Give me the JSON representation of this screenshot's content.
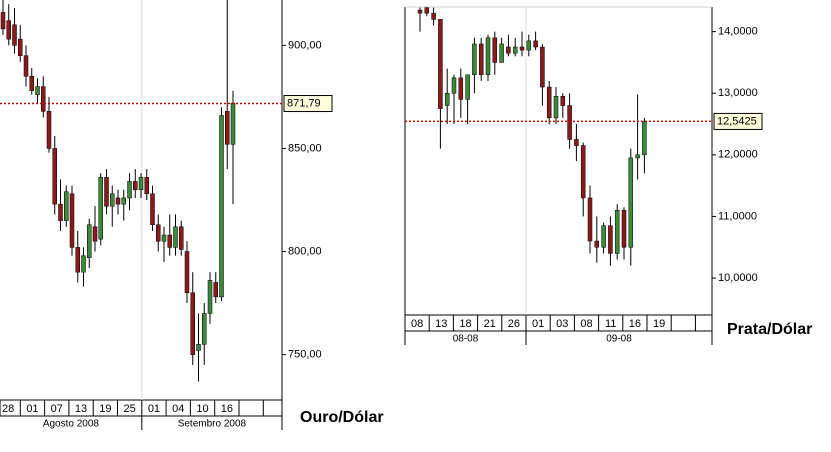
{
  "chart_data": [
    {
      "type": "candlestick",
      "title": "Ouro/Dólar",
      "ylim": [
        728,
        922
      ],
      "yticks": [
        {
          "value": 750,
          "label": "750,00"
        },
        {
          "value": 800,
          "label": "800,00"
        },
        {
          "value": 850,
          "label": "850,00"
        },
        {
          "value": 900,
          "label": "900,00"
        }
      ],
      "last": {
        "value": 871.79,
        "label": "871,79"
      },
      "date_labels": [
        "28",
        "01",
        "07",
        "13",
        "19",
        "25",
        "01",
        "04",
        "10",
        "16"
      ],
      "months": [
        "Agosto 2008",
        "Setembro 2008"
      ],
      "up_color": "#3a8a3a",
      "down_color": "#8b1a1a",
      "open": [
        916,
        912,
        910,
        903,
        895,
        885,
        876,
        880,
        868,
        850,
        823,
        815,
        828,
        802,
        790,
        797,
        812,
        806,
        836,
        822,
        826,
        823,
        826,
        834,
        830,
        836,
        828,
        813,
        805,
        808,
        802,
        812,
        800,
        780,
        752,
        755,
        770,
        785,
        778,
        868,
        852
      ],
      "high": [
        922,
        920,
        918,
        910,
        900,
        889,
        884,
        885,
        875,
        856,
        835,
        832,
        832,
        810,
        802,
        816,
        822,
        838,
        840,
        832,
        830,
        830,
        838,
        840,
        838,
        840,
        832,
        818,
        812,
        818,
        818,
        815,
        805,
        790,
        770,
        775,
        790,
        790,
        870,
        922,
        878
      ],
      "low": [
        905,
        900,
        896,
        892,
        880,
        876,
        872,
        865,
        848,
        818,
        810,
        812,
        798,
        785,
        783,
        792,
        800,
        803,
        818,
        812,
        818,
        815,
        820,
        826,
        826,
        825,
        810,
        800,
        795,
        798,
        798,
        798,
        775,
        745,
        737,
        745,
        765,
        775,
        776,
        840,
        823
      ],
      "close": [
        908,
        903,
        900,
        895,
        885,
        878,
        880,
        868,
        850,
        823,
        815,
        829,
        802,
        790,
        798,
        813,
        805,
        836,
        822,
        828,
        823,
        826,
        834,
        830,
        836,
        828,
        813,
        805,
        808,
        802,
        812,
        801,
        780,
        750,
        755,
        770,
        786,
        778,
        866,
        852,
        872
      ]
    },
    {
      "type": "candlestick",
      "title": "Prata/Dólar",
      "ylim": [
        9.4,
        14.4
      ],
      "yticks": [
        {
          "value": 10,
          "label": "10,0000"
        },
        {
          "value": 11,
          "label": "11,0000"
        },
        {
          "value": 12,
          "label": "12,0000"
        },
        {
          "value": 13,
          "label": "13,0000"
        },
        {
          "value": 14,
          "label": "14,0000"
        }
      ],
      "last": {
        "value": 12.5425,
        "label": "12,5425"
      },
      "date_labels": [
        "08",
        "13",
        "18",
        "21",
        "26",
        "01",
        "03",
        "08",
        "11",
        "16",
        "19"
      ],
      "months": [
        "08-08",
        "09-08"
      ],
      "up_color": "#3a8a3a",
      "down_color": "#8b1a1a",
      "open": [
        14.35,
        14.39,
        14.3,
        14.2,
        12.8,
        13.0,
        13.25,
        12.9,
        13.3,
        13.8,
        13.3,
        13.9,
        13.5,
        13.75,
        13.65,
        13.75,
        13.7,
        13.85,
        13.75,
        13.1,
        12.6,
        12.95,
        12.8,
        12.25,
        12.15,
        11.3,
        10.6,
        10.5,
        10.85,
        10.4,
        11.1,
        10.5,
        11.95,
        12.0
      ],
      "high": [
        14.39,
        14.39,
        14.39,
        14.2,
        13.4,
        13.3,
        13.4,
        13.3,
        13.9,
        13.9,
        13.95,
        14.0,
        13.9,
        13.95,
        13.9,
        14.0,
        13.95,
        14.0,
        13.8,
        13.2,
        13.1,
        13.0,
        13.0,
        12.5,
        12.2,
        11.5,
        11.0,
        10.9,
        11.0,
        11.2,
        11.15,
        12.1,
        12.98,
        12.6
      ],
      "low": [
        14.0,
        14.25,
        14.1,
        12.1,
        12.5,
        12.5,
        12.6,
        12.5,
        13.0,
        13.2,
        13.2,
        13.3,
        13.5,
        13.6,
        13.6,
        13.6,
        13.6,
        13.7,
        12.8,
        12.5,
        12.5,
        12.6,
        12.1,
        11.9,
        11.0,
        10.4,
        10.25,
        10.4,
        10.2,
        10.3,
        10.3,
        10.2,
        11.6,
        11.7
      ],
      "close": [
        14.3,
        14.3,
        14.2,
        12.75,
        13.0,
        13.25,
        12.9,
        13.3,
        13.8,
        13.3,
        13.9,
        13.5,
        13.8,
        13.65,
        13.75,
        13.7,
        13.85,
        13.75,
        13.1,
        12.6,
        12.95,
        12.8,
        12.25,
        12.15,
        11.3,
        10.6,
        10.5,
        10.85,
        10.4,
        11.1,
        10.5,
        11.95,
        12.0,
        12.54
      ]
    }
  ]
}
